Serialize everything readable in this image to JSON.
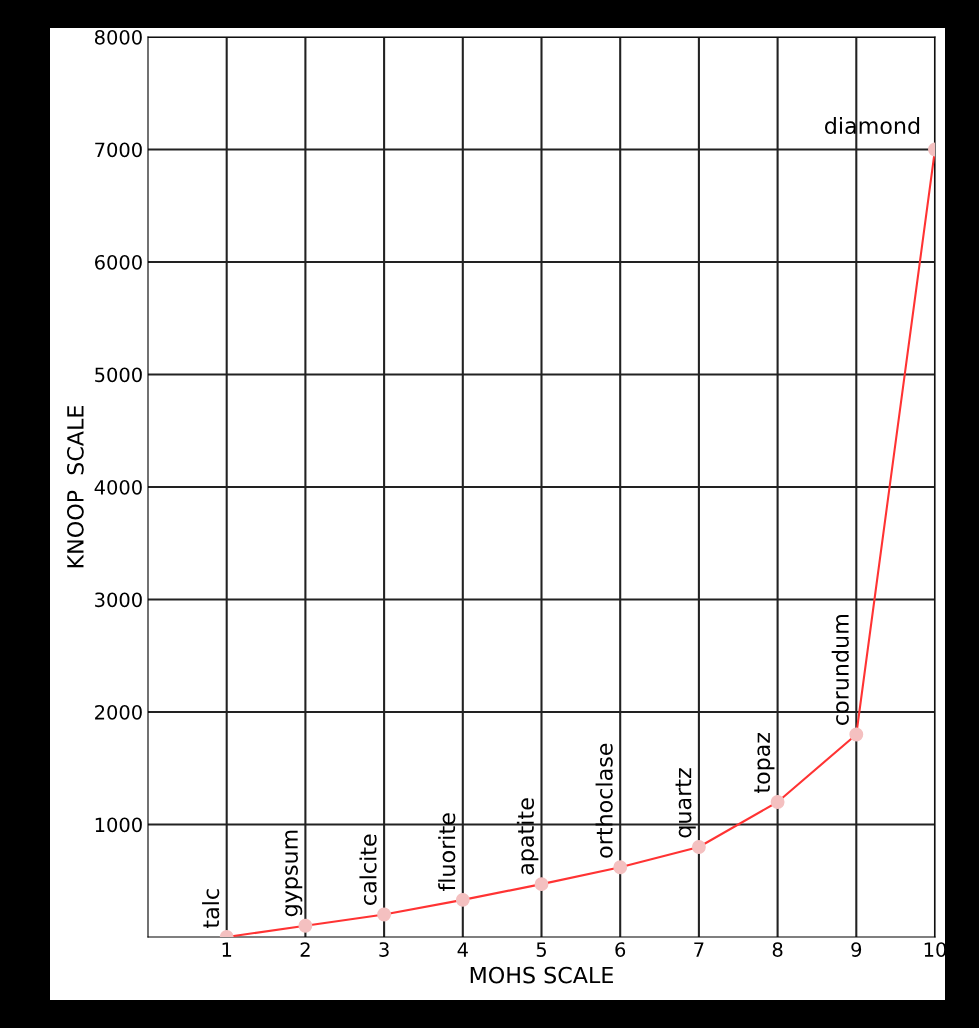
{
  "chart_data": {
    "type": "line",
    "xlabel": "MOHS SCALE",
    "ylabel": "KNOOP  SCALE",
    "x": [
      1,
      2,
      3,
      4,
      5,
      6,
      7,
      8,
      9,
      10
    ],
    "series": [
      {
        "color": "#ff3333",
        "values": [
          0,
          100,
          200,
          330,
          470,
          620,
          800,
          1200,
          1800,
          7000
        ]
      }
    ],
    "xlim": [
      0,
      10
    ],
    "ylim": [
      0,
      8000
    ],
    "xticks": [
      1,
      2,
      3,
      4,
      5,
      6,
      7,
      8,
      9,
      10
    ],
    "yticks": [
      1000,
      2000,
      3000,
      4000,
      5000,
      6000,
      7000,
      8000
    ],
    "grid": true,
    "marker": "circle",
    "line_style": "solid",
    "annotations": [
      {
        "text": "talc",
        "x": 1,
        "y": 0
      },
      {
        "text": "gypsum",
        "x": 2,
        "y": 100
      },
      {
        "text": "calcite",
        "x": 3,
        "y": 200
      },
      {
        "text": "fluorite",
        "x": 4,
        "y": 330
      },
      {
        "text": "apatite",
        "x": 5,
        "y": 470
      },
      {
        "text": "orthoclase",
        "x": 6,
        "y": 620
      },
      {
        "text": "quartz",
        "x": 7,
        "y": 800
      },
      {
        "text": "topaz",
        "x": 8,
        "y": 1200
      },
      {
        "text": "corundum",
        "x": 9,
        "y": 1800
      },
      {
        "text": "diamond",
        "x": 10,
        "y": 7000
      }
    ]
  }
}
